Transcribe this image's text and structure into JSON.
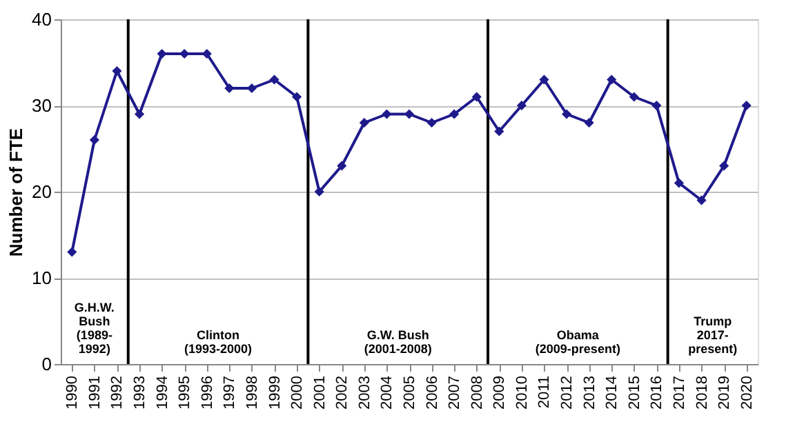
{
  "chart_data": {
    "type": "line",
    "ylabel": "Number of FTE",
    "x": [
      1990,
      1991,
      1992,
      1993,
      1994,
      1995,
      1996,
      1997,
      1998,
      1999,
      2000,
      2001,
      2002,
      2003,
      2004,
      2005,
      2006,
      2007,
      2008,
      2009,
      2010,
      2011,
      2012,
      2013,
      2014,
      2015,
      2016,
      2017,
      2018,
      2019,
      2020
    ],
    "series": [
      {
        "color": "#1f1a8c",
        "values": [
          13,
          26,
          34,
          29,
          36,
          36,
          36,
          32,
          32,
          33,
          31,
          20,
          23,
          28,
          29,
          29,
          28,
          29,
          31,
          27,
          30,
          33,
          29,
          28,
          33,
          31,
          30,
          21,
          19,
          23,
          30
        ]
      }
    ],
    "xlim": [
      1989.5,
      2020.5
    ],
    "xticks": [
      1990,
      1991,
      1992,
      1993,
      1994,
      1995,
      1996,
      1997,
      1998,
      1999,
      2000,
      2001,
      2002,
      2003,
      2004,
      2005,
      2006,
      2007,
      2008,
      2009,
      2010,
      2011,
      2012,
      2013,
      2014,
      2015,
      2016,
      2017,
      2018,
      2019,
      2020
    ],
    "ylim": [
      0,
      40
    ],
    "yticks": [
      0,
      10,
      20,
      30,
      40
    ],
    "grid": "y",
    "marker": "diamond",
    "line_style": "solid",
    "ref_lines": [
      {
        "axis": "x",
        "value": 1992.5,
        "color": "#000000"
      },
      {
        "axis": "x",
        "value": 2000.5,
        "color": "#000000"
      },
      {
        "axis": "x",
        "value": 2008.5,
        "color": "#000000"
      },
      {
        "axis": "x",
        "value": 2016.5,
        "color": "#000000"
      }
    ],
    "annotations": [
      "G.H.W.\nBush\n(1989-\n1992)",
      "Clinton\n(1993-2000)",
      "G.W. Bush\n(2001-2008)",
      "Obama\n(2009-present)",
      "Trump\n2017-\npresent)"
    ]
  }
}
